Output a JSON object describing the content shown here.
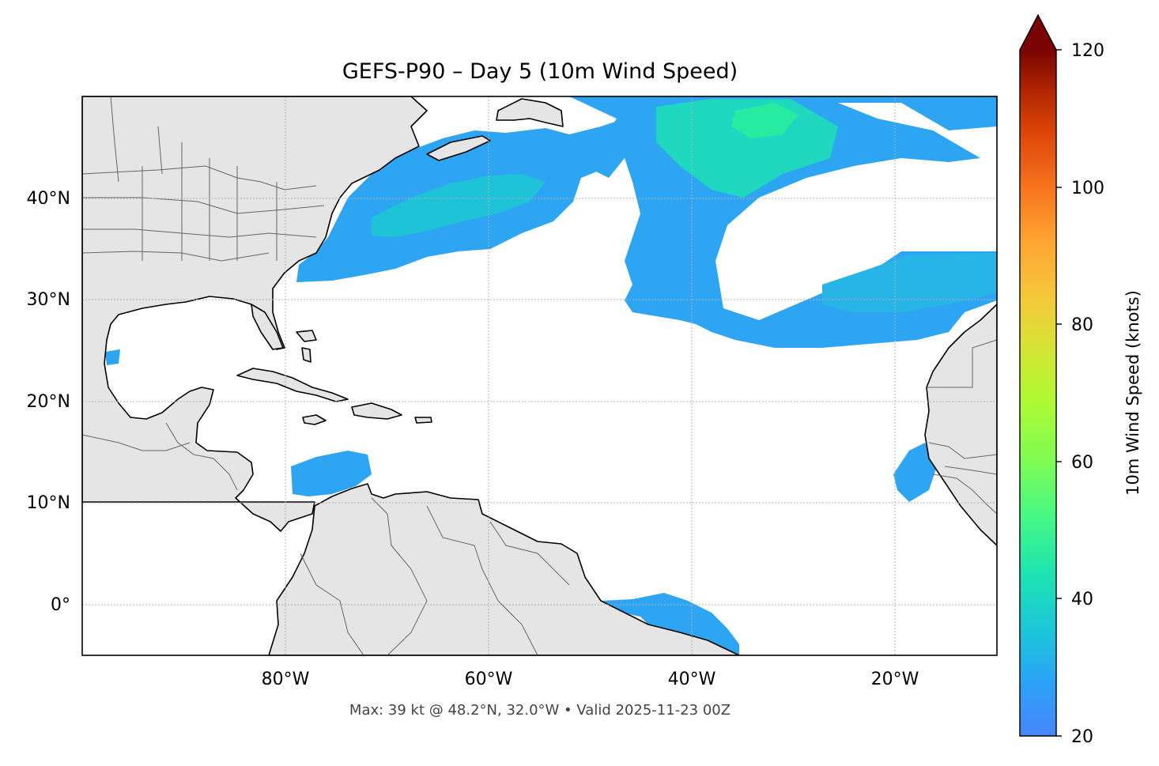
{
  "title": "GEFS-P90 – Day 5 (10m Wind Speed)",
  "footer": "Max: 39 kt @ 48.2°N, 32.0°W • Valid 2025-11-23 00Z",
  "map": {
    "lon_ticks": [
      "80°W",
      "60°W",
      "40°W",
      "20°W"
    ],
    "lat_ticks": [
      "40°N",
      "30°N",
      "20°N",
      "10°N",
      "0°"
    ],
    "lon_range": [
      -100,
      -10
    ],
    "lat_range": [
      -5,
      50
    ],
    "land_color": "#e5e5e5",
    "coast_color": "#000000",
    "border_color": "#666666",
    "gridlines": true
  },
  "colorbar": {
    "label": "10m Wind Speed (knots)",
    "ticks": [
      "20",
      "40",
      "60",
      "80",
      "100",
      "120"
    ],
    "range": [
      20,
      120
    ],
    "colormap": "turbo",
    "extend": "max"
  }
}
